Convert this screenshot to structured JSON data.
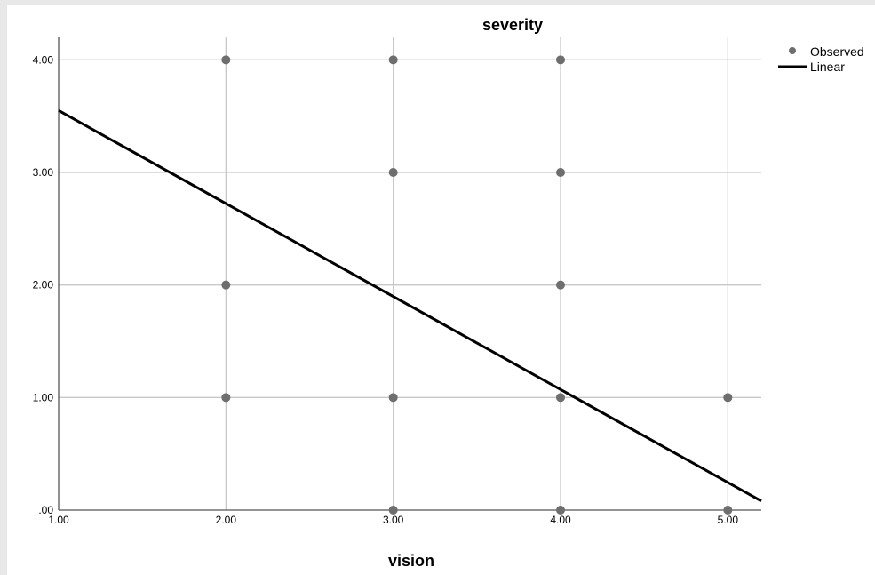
{
  "chart_data": {
    "type": "scatter",
    "title": "severity",
    "xlabel": "vision",
    "ylabel": "",
    "xlim": [
      1,
      5.2
    ],
    "ylim": [
      0,
      4.2
    ],
    "x_ticks": [
      1,
      2,
      3,
      4,
      5
    ],
    "x_tick_labels": [
      "1.00",
      "2.00",
      "3.00",
      "4.00",
      "5.00"
    ],
    "y_ticks": [
      0,
      1,
      2,
      3,
      4
    ],
    "y_tick_labels": [
      ".00",
      "1.00",
      "2.00",
      "3.00",
      "4.00"
    ],
    "grid": true,
    "legend_position": "top-right",
    "series": [
      {
        "name": "Observed",
        "kind": "scatter",
        "color": "#6e6e6e",
        "points": [
          {
            "x": 2,
            "y": 4
          },
          {
            "x": 2,
            "y": 2
          },
          {
            "x": 2,
            "y": 1
          },
          {
            "x": 3,
            "y": 4
          },
          {
            "x": 3,
            "y": 3
          },
          {
            "x": 3,
            "y": 1
          },
          {
            "x": 3,
            "y": 0
          },
          {
            "x": 4,
            "y": 4
          },
          {
            "x": 4,
            "y": 3
          },
          {
            "x": 4,
            "y": 2
          },
          {
            "x": 4,
            "y": 1
          },
          {
            "x": 4,
            "y": 0
          },
          {
            "x": 5,
            "y": 1
          },
          {
            "x": 5,
            "y": 0
          }
        ]
      },
      {
        "name": "Linear",
        "kind": "line",
        "color": "#000000",
        "points": [
          {
            "x": 1,
            "y": 3.55
          },
          {
            "x": 5.2,
            "y": 0.08
          }
        ]
      }
    ]
  }
}
